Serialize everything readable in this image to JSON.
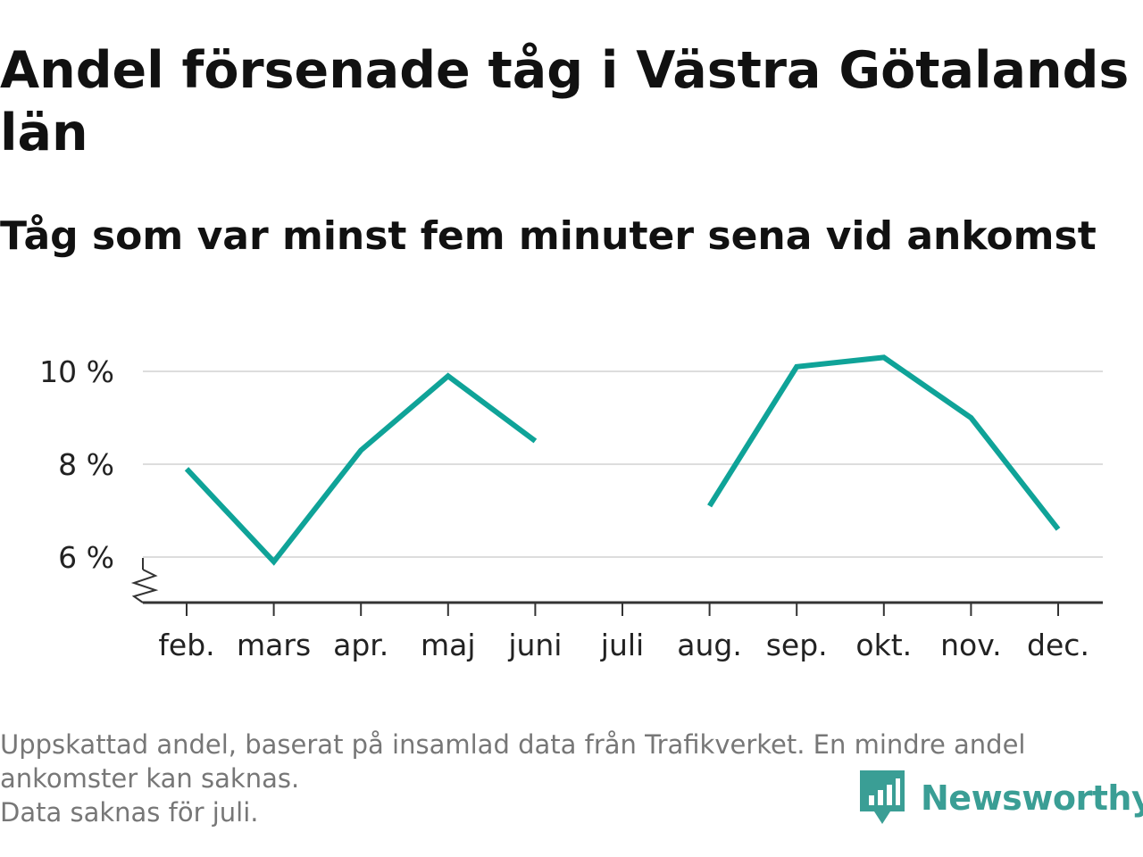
{
  "title": "Andel försenade tåg i Västra Götalands län",
  "subtitle": "Tåg som var minst fem minuter sena vid ankomst",
  "footnote": {
    "line1": "Uppskattad andel, baserat på insamlad data från Trafikverket. En mindre andel",
    "line2": "ankomster kan saknas.",
    "line3": "Data saknas för juli."
  },
  "brand": {
    "name": "Newsworthy",
    "icon": "newsworthy-logo-icon",
    "color": "#3a9e95"
  },
  "chart_data": {
    "type": "line",
    "categories": [
      "feb.",
      "mars",
      "apr.",
      "maj",
      "juni",
      "juli",
      "aug.",
      "sep.",
      "okt.",
      "nov.",
      "dec."
    ],
    "series": [
      {
        "values": [
          7.9,
          5.9,
          8.3,
          9.9,
          8.5,
          null,
          7.1,
          10.1,
          10.3,
          9.0,
          6.6
        ],
        "color": "#0fa398"
      }
    ],
    "y_ticks": [
      6,
      8,
      10
    ],
    "y_tick_labels": [
      "6 %",
      "8 %",
      "10 %"
    ],
    "ylim": [
      5,
      10.5
    ],
    "y_axis_break": true,
    "grid": true,
    "gridline_color": "#dddddd",
    "xlabel": "",
    "ylabel": ""
  }
}
